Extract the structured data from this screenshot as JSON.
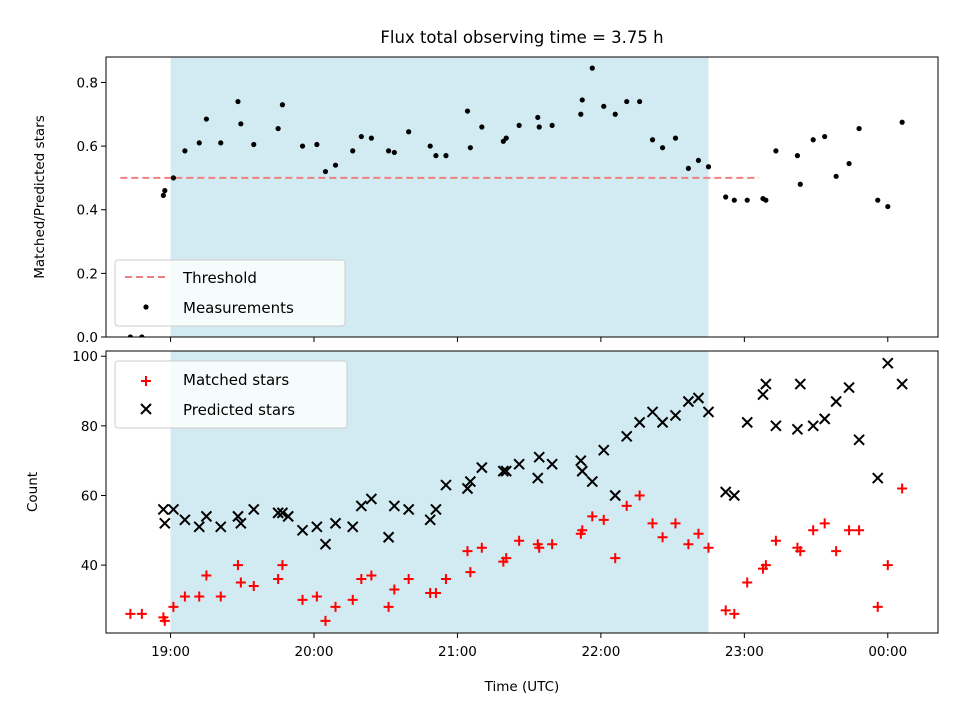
{
  "title": "Flux total observing time = 3.75 h",
  "chart_data": [
    {
      "type": "scatter",
      "ylabel": "Matched/Predicted stars",
      "ylim": [
        0,
        0.88
      ],
      "yticks": [
        "0.0",
        "0.2",
        "0.4",
        "0.6",
        "0.8"
      ],
      "ytick_values": [
        0,
        0.2,
        0.4,
        0.6,
        0.8
      ],
      "shaded_span": {
        "start": 19.0,
        "end": 22.75,
        "color": "#add8e6"
      },
      "threshold": {
        "name": "Threshold",
        "value": 0.5,
        "xmin": 18.65,
        "xmax": 23.1,
        "color": "#f08080"
      },
      "legend": {
        "location": "lower left",
        "entries": [
          "Threshold",
          "Measurements"
        ]
      },
      "series": [
        {
          "name": "Measurements",
          "color": "#000000",
          "x": [
            18.72,
            18.8,
            18.95,
            18.96,
            19.02,
            19.1,
            19.2,
            19.25,
            19.35,
            19.47,
            19.49,
            19.58,
            19.75,
            19.78,
            19.92,
            20.02,
            20.08,
            20.15,
            20.27,
            20.33,
            20.4,
            20.52,
            20.56,
            20.66,
            20.81,
            20.85,
            20.92,
            21.07,
            21.09,
            21.17,
            21.32,
            21.34,
            21.43,
            21.56,
            21.57,
            21.66,
            21.86,
            21.87,
            21.94,
            22.02,
            22.1,
            22.18,
            22.27,
            22.36,
            22.43,
            22.52,
            22.61,
            22.68,
            22.75,
            22.87,
            22.93,
            23.02,
            23.13,
            23.15,
            23.22,
            23.37,
            23.39,
            23.48,
            23.56,
            23.64,
            23.73,
            23.8,
            23.93,
            24.0,
            24.1
          ],
          "y": [
            0.0,
            0.0,
            0.445,
            0.46,
            0.5,
            0.585,
            0.61,
            0.685,
            0.61,
            0.74,
            0.67,
            0.605,
            0.655,
            0.73,
            0.6,
            0.605,
            0.52,
            0.54,
            0.585,
            0.63,
            0.625,
            0.585,
            0.58,
            0.645,
            0.6,
            0.57,
            0.57,
            0.71,
            0.595,
            0.66,
            0.615,
            0.625,
            0.665,
            0.69,
            0.66,
            0.665,
            0.7,
            0.745,
            0.845,
            0.725,
            0.7,
            0.74,
            0.74,
            0.62,
            0.595,
            0.625,
            0.53,
            0.555,
            0.535,
            0.44,
            0.43,
            0.43,
            0.435,
            0.43,
            0.585,
            0.57,
            0.48,
            0.62,
            0.63,
            0.505,
            0.545,
            0.655,
            0.43,
            0.41,
            0.675
          ]
        }
      ]
    },
    {
      "type": "scatter",
      "xlabel": "Time (UTC)",
      "ylabel": "Count",
      "xlim": [
        18.55,
        24.35
      ],
      "ylim": [
        20.5,
        101.5
      ],
      "xticks": [
        "19:00",
        "20:00",
        "21:00",
        "22:00",
        "23:00",
        "00:00"
      ],
      "xtick_values": [
        19,
        20,
        21,
        22,
        23,
        24
      ],
      "yticks": [
        "40",
        "60",
        "80",
        "100"
      ],
      "ytick_values": [
        40,
        60,
        80,
        100
      ],
      "shaded_span": {
        "start": 19.0,
        "end": 22.75,
        "color": "#add8e6"
      },
      "legend": {
        "location": "upper left",
        "entries": [
          "Matched stars",
          "Predicted stars"
        ]
      },
      "series": [
        {
          "name": "Matched stars",
          "marker": "+",
          "color": "#ff0000",
          "x": [
            18.72,
            18.8,
            18.95,
            18.96,
            19.02,
            19.1,
            19.2,
            19.25,
            19.35,
            19.47,
            19.49,
            19.58,
            19.75,
            19.78,
            19.92,
            20.02,
            20.08,
            20.15,
            20.27,
            20.33,
            20.4,
            20.52,
            20.56,
            20.66,
            20.81,
            20.85,
            20.92,
            21.07,
            21.09,
            21.17,
            21.32,
            21.34,
            21.43,
            21.56,
            21.57,
            21.66,
            21.86,
            21.87,
            21.94,
            22.02,
            22.1,
            22.18,
            22.27,
            22.36,
            22.43,
            22.52,
            22.61,
            22.68,
            22.75,
            22.87,
            22.93,
            23.02,
            23.13,
            23.15,
            23.22,
            23.37,
            23.39,
            23.48,
            23.56,
            23.64,
            23.73,
            23.8,
            23.93,
            24.0,
            24.1
          ],
          "y": [
            26,
            26,
            25,
            24,
            28,
            31,
            31,
            37,
            31,
            40,
            35,
            34,
            36,
            40,
            30,
            31,
            24,
            28,
            30,
            36,
            37,
            28,
            33,
            36,
            32,
            32,
            36,
            44,
            38,
            45,
            41,
            42,
            47,
            46,
            45,
            46,
            49,
            50,
            54,
            53,
            42,
            57,
            60,
            52,
            48,
            52,
            46,
            49,
            45,
            27,
            26,
            35,
            39,
            40,
            47,
            45,
            44,
            50,
            52,
            44,
            50,
            50,
            28,
            40,
            62
          ]
        },
        {
          "name": "Predicted stars",
          "marker": "x",
          "color": "#000000",
          "x": [
            18.95,
            18.96,
            19.02,
            19.1,
            19.2,
            19.25,
            19.35,
            19.47,
            19.49,
            19.58,
            19.75,
            19.78,
            19.82,
            19.92,
            20.02,
            20.08,
            20.15,
            20.27,
            20.33,
            20.4,
            20.52,
            20.56,
            20.66,
            20.81,
            20.85,
            20.92,
            21.07,
            21.09,
            21.17,
            21.32,
            21.34,
            21.43,
            21.56,
            21.57,
            21.66,
            21.86,
            21.87,
            21.94,
            22.02,
            22.1,
            22.18,
            22.27,
            22.36,
            22.43,
            22.52,
            22.61,
            22.68,
            22.75,
            22.87,
            22.93,
            23.02,
            23.13,
            23.15,
            23.22,
            23.37,
            23.39,
            23.48,
            23.56,
            23.64,
            23.73,
            23.8,
            23.93,
            24.0,
            24.1
          ],
          "y": [
            56,
            52,
            56,
            53,
            51,
            54,
            51,
            54,
            52,
            56,
            55,
            55,
            54,
            50,
            51,
            46,
            52,
            51,
            57,
            59,
            48,
            57,
            56,
            53,
            56,
            63,
            62,
            64,
            68,
            67,
            67,
            69,
            65,
            71,
            69,
            70,
            67,
            64,
            73,
            60,
            77,
            81,
            84,
            81,
            83,
            87,
            88,
            84,
            61,
            60,
            81,
            89,
            92,
            80,
            79,
            92,
            80,
            82,
            87,
            91,
            76,
            65,
            98,
            92
          ]
        }
      ]
    }
  ]
}
